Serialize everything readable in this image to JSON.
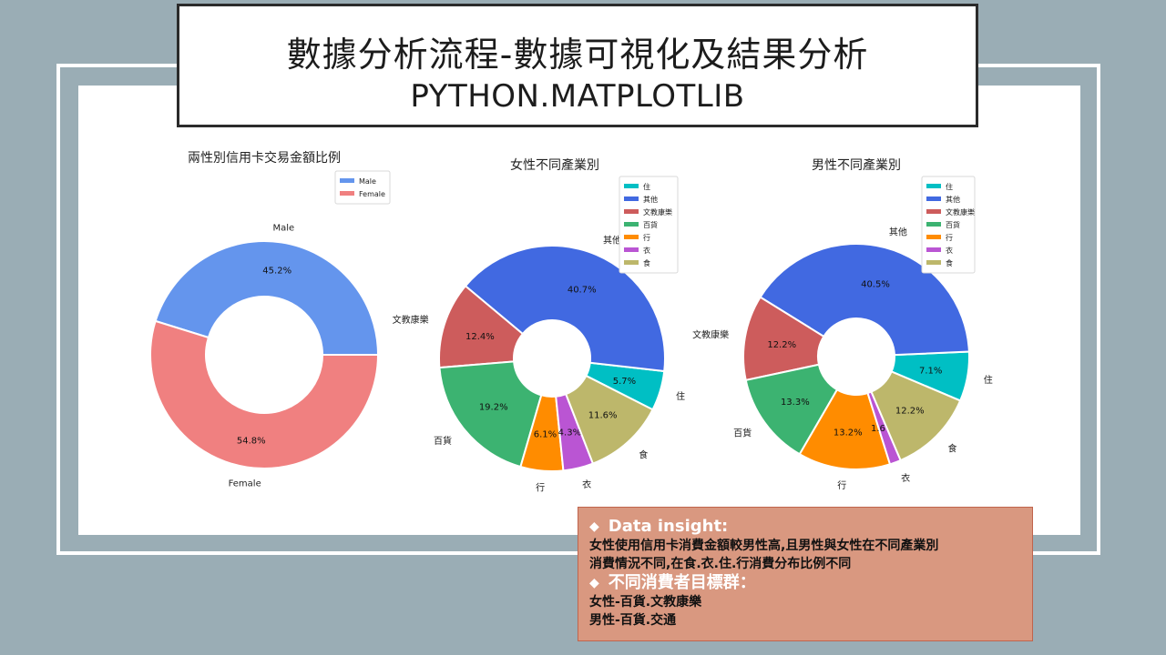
{
  "header": {
    "title": "數據分析流程-數據可視化及結果分析",
    "subtitle": "PYTHON.MATPLOTLIB"
  },
  "chart_data": [
    {
      "type": "pie",
      "title": "兩性別信用卡交易金額比例",
      "categories": [
        "Male",
        "Female"
      ],
      "values": [
        45.2,
        54.8
      ],
      "value_labels": [
        "45.2%",
        "54.8%"
      ],
      "colors": [
        "#6495ed",
        "#f08080"
      ],
      "legend": "top-right"
    },
    {
      "type": "pie",
      "title": "女性不同產業別",
      "categories": [
        "住",
        "其他",
        "文教康樂",
        "百貨",
        "行",
        "衣",
        "食"
      ],
      "values": [
        5.7,
        40.7,
        12.4,
        19.2,
        6.1,
        4.3,
        11.6
      ],
      "value_labels": [
        "5.7%",
        "40.7%",
        "12.4%",
        "19.2%",
        "6.1%",
        "4.3%",
        "11.6%"
      ],
      "colors": [
        "#00bfc4",
        "#4169e1",
        "#cd5c5c",
        "#3cb371",
        "#ff8c00",
        "#ba55d3",
        "#bdb76b"
      ],
      "legend": "top-right"
    },
    {
      "type": "pie",
      "title": "男性不同產業別",
      "categories": [
        "住",
        "其他",
        "文教康樂",
        "百貨",
        "行",
        "衣",
        "食"
      ],
      "values": [
        7.1,
        40.5,
        12.2,
        13.3,
        13.2,
        1.6,
        12.2
      ],
      "value_labels": [
        "7.1%",
        "40.5%",
        "12.2%",
        "13.3%",
        "13.2%",
        "1.6%",
        "12.2%"
      ],
      "colors": [
        "#00bfc4",
        "#4169e1",
        "#cd5c5c",
        "#3cb371",
        "#ff8c00",
        "#ba55d3",
        "#bdb76b"
      ],
      "legend": "top-right"
    }
  ],
  "insight": {
    "heading1": "Data insight:",
    "line1": "女性使用信用卡消費金額較男性高,且男性與女性在不同產業別",
    "line2": "消費情況不同,在食.衣.住.行消費分布比例不同",
    "heading2": "不同消費者目標群：",
    "line3": "女性-百貨.文教康樂",
    "line4": "男性-百貨.交通",
    "bullet": "◆"
  }
}
